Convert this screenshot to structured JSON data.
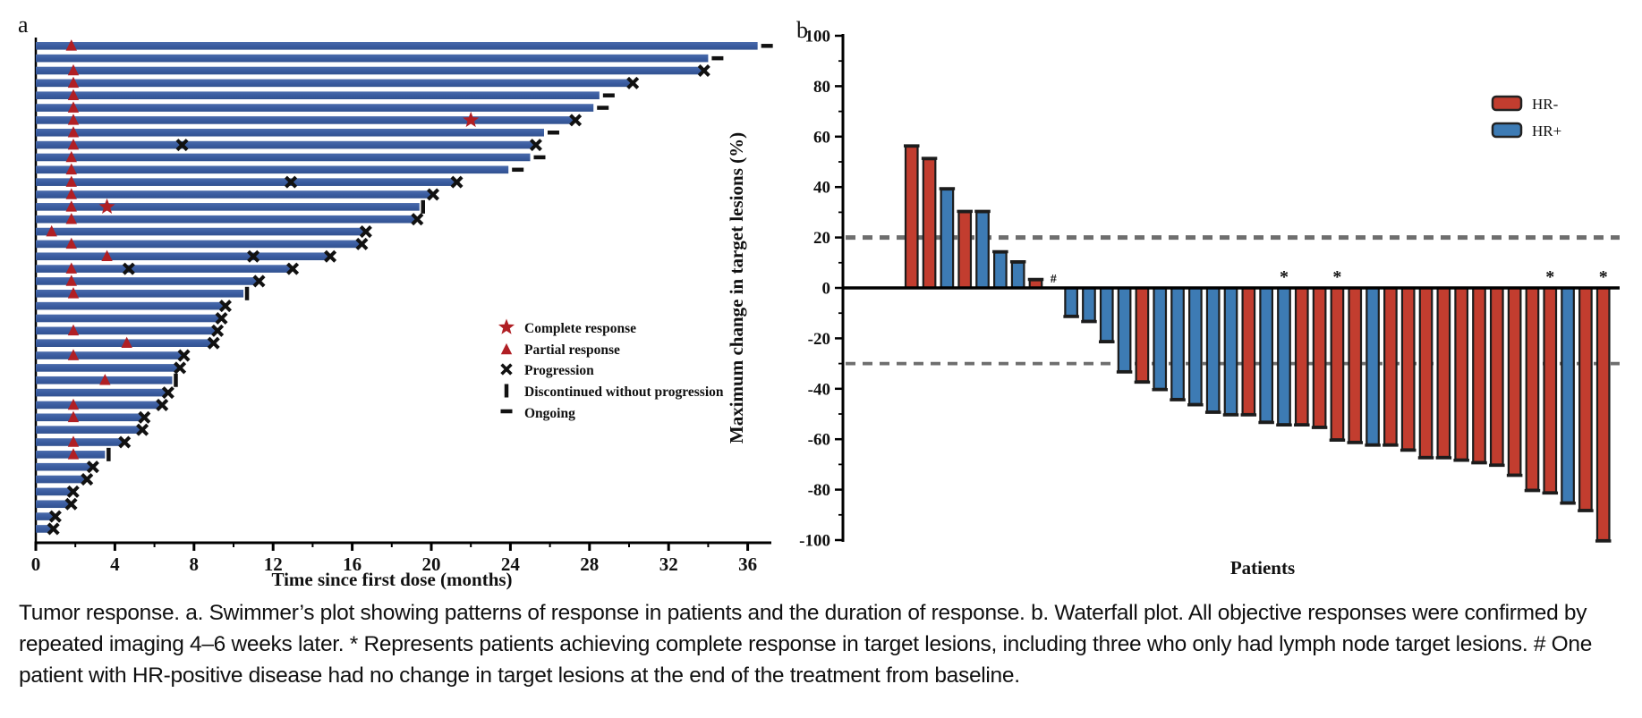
{
  "caption": "Tumor response. a. Swimmer’s plot showing patterns of response in patients and the duration of response. b. Waterfall plot. All objective responses were confirmed by repeated imaging 4–6 weeks later. * Represents patients achieving complete response in target lesions, including three who only had lymph node target lesions. # One patient with HR-positive disease had no change in target lesions at the end of the treatment from baseline.",
  "colors": {
    "swimmer_bar": "#3a5ca0",
    "swimmer_bar_light": "#53719f",
    "response_red": "#b01f24",
    "marker_black": "#111111",
    "hr_negative": "#c23d2f",
    "hr_positive": "#3d7bb4",
    "bar_outline": "#1c1c1c",
    "ref_line_gray": "#6e6e6e",
    "axis_black": "#000000"
  },
  "chart_data": [
    {
      "panel": "a",
      "type": "swimmer",
      "xlabel": "Time since first dose (months)",
      "xticks": [
        0,
        4,
        8,
        12,
        16,
        20,
        24,
        28,
        32,
        36
      ],
      "xminor_step": 2,
      "xlim": [
        0,
        37.2
      ],
      "legend": [
        {
          "marker": "star",
          "label": "Complete response"
        },
        {
          "marker": "triangle",
          "label": "Partial response"
        },
        {
          "marker": "x",
          "label": "Progression"
        },
        {
          "marker": "bar",
          "label": "Discontinued without progression"
        },
        {
          "marker": "dash",
          "label": "Ongoing"
        }
      ],
      "patients": [
        {
          "end": 36.5,
          "end_marker": "ongoing",
          "pr": [
            1.8
          ]
        },
        {
          "end": 34.0,
          "end_marker": "ongoing",
          "pr": []
        },
        {
          "end": 33.7,
          "end_marker": "progression",
          "pr": [
            1.9
          ]
        },
        {
          "end": 30.1,
          "end_marker": "progression",
          "pr": [
            1.9
          ]
        },
        {
          "end": 28.5,
          "end_marker": "ongoing",
          "pr": [
            1.9
          ]
        },
        {
          "end": 28.2,
          "end_marker": "ongoing",
          "pr": [
            1.9
          ]
        },
        {
          "end": 27.2,
          "end_marker": "progression",
          "pr": [
            1.9
          ],
          "cr": [
            22.0
          ]
        },
        {
          "end": 25.7,
          "end_marker": "ongoing",
          "pr": [
            1.9
          ]
        },
        {
          "end": 25.2,
          "end_marker": "progression",
          "pr": [
            1.9
          ],
          "x": [
            7.4
          ]
        },
        {
          "end": 25.0,
          "end_marker": "ongoing",
          "pr": [
            1.8
          ]
        },
        {
          "end": 23.9,
          "end_marker": "ongoing",
          "pr": [
            1.8
          ]
        },
        {
          "end": 21.2,
          "end_marker": "progression",
          "pr": [
            1.8
          ],
          "x": [
            12.9
          ]
        },
        {
          "end": 20.0,
          "end_marker": "progression",
          "pr": [
            1.8
          ]
        },
        {
          "end": 19.4,
          "end_marker": "discontinued",
          "pr": [
            1.8
          ],
          "cr": [
            3.6
          ]
        },
        {
          "end": 19.2,
          "end_marker": "progression",
          "pr": [
            1.8
          ]
        },
        {
          "end": 16.6,
          "end_marker": "progression",
          "pr": [
            0.8
          ]
        },
        {
          "end": 16.4,
          "end_marker": "progression",
          "pr": [
            1.8
          ]
        },
        {
          "end": 14.8,
          "end_marker": "progression",
          "pr": [
            3.6
          ],
          "x": [
            11.0
          ]
        },
        {
          "end": 12.9,
          "end_marker": "progression",
          "pr": [
            1.8
          ],
          "x": [
            4.7
          ]
        },
        {
          "end": 11.2,
          "end_marker": "progression",
          "pr": [
            1.8
          ]
        },
        {
          "end": 10.5,
          "end_marker": "discontinued",
          "pr": [
            1.9
          ]
        },
        {
          "end": 9.5,
          "end_marker": "progression",
          "pr": []
        },
        {
          "end": 9.3,
          "end_marker": "progression",
          "pr": []
        },
        {
          "end": 9.1,
          "end_marker": "progression",
          "pr": [
            1.9
          ]
        },
        {
          "end": 8.9,
          "end_marker": "progression",
          "pr": [
            4.6
          ]
        },
        {
          "end": 7.4,
          "end_marker": "progression",
          "pr": [
            1.9
          ]
        },
        {
          "end": 7.2,
          "end_marker": "progression",
          "pr": []
        },
        {
          "end": 6.9,
          "end_marker": "discontinued",
          "pr": [
            3.5
          ]
        },
        {
          "end": 6.6,
          "end_marker": "progression",
          "pr": []
        },
        {
          "end": 6.3,
          "end_marker": "progression",
          "pr": [
            1.9
          ]
        },
        {
          "end": 5.4,
          "end_marker": "progression",
          "pr": [
            1.9
          ]
        },
        {
          "end": 5.3,
          "end_marker": "progression",
          "pr": []
        },
        {
          "end": 4.4,
          "end_marker": "progression",
          "pr": [
            1.9
          ]
        },
        {
          "end": 3.5,
          "end_marker": "discontinued",
          "pr": [
            1.9
          ]
        },
        {
          "end": 2.8,
          "end_marker": "progression",
          "pr": []
        },
        {
          "end": 2.5,
          "end_marker": "progression",
          "pr": []
        },
        {
          "end": 1.8,
          "end_marker": "progression",
          "pr": []
        },
        {
          "end": 1.7,
          "end_marker": "progression",
          "pr": []
        },
        {
          "end": 0.9,
          "end_marker": "progression",
          "pr": []
        },
        {
          "end": 0.8,
          "end_marker": "progression",
          "pr": []
        }
      ]
    },
    {
      "panel": "b",
      "type": "bar",
      "ylabel": "Maximum change in target lesions (%)",
      "xlabel": "Patients",
      "yticks": [
        100,
        80,
        60,
        40,
        20,
        0,
        -20,
        -40,
        -60,
        -80,
        -100
      ],
      "ytick_labels": [
        "100",
        "80",
        "60",
        "40",
        "20",
        "0",
        "-20",
        "-40",
        "-60",
        "-80",
        "-100"
      ],
      "yminor_step": 10,
      "ylim": [
        -100,
        100
      ],
      "ref_lines": [
        20,
        -30
      ],
      "legend": [
        {
          "label": "HR-",
          "color": "#c23d2f"
        },
        {
          "label": "HR+",
          "color": "#3d7bb4"
        }
      ],
      "bars": [
        {
          "value": 56,
          "group": "HR-"
        },
        {
          "value": 51,
          "group": "HR-"
        },
        {
          "value": 39,
          "group": "HR+"
        },
        {
          "value": 30,
          "group": "HR-"
        },
        {
          "value": 30,
          "group": "HR+"
        },
        {
          "value": 14,
          "group": "HR+"
        },
        {
          "value": 10,
          "group": "HR+"
        },
        {
          "value": 3,
          "group": "HR-"
        },
        {
          "value": 0,
          "group": "HR+",
          "annotation": "#"
        },
        {
          "value": -11,
          "group": "HR+"
        },
        {
          "value": -13,
          "group": "HR+"
        },
        {
          "value": -21,
          "group": "HR+"
        },
        {
          "value": -33,
          "group": "HR+"
        },
        {
          "value": -37,
          "group": "HR-"
        },
        {
          "value": -40,
          "group": "HR+"
        },
        {
          "value": -44,
          "group": "HR+"
        },
        {
          "value": -46,
          "group": "HR+"
        },
        {
          "value": -49,
          "group": "HR+"
        },
        {
          "value": -50,
          "group": "HR+"
        },
        {
          "value": -50,
          "group": "HR-"
        },
        {
          "value": -53,
          "group": "HR+"
        },
        {
          "value": -54,
          "group": "HR+",
          "annotation": "*"
        },
        {
          "value": -54,
          "group": "HR-"
        },
        {
          "value": -55,
          "group": "HR-"
        },
        {
          "value": -60,
          "group": "HR-",
          "annotation": "*"
        },
        {
          "value": -61,
          "group": "HR-"
        },
        {
          "value": -62,
          "group": "HR+"
        },
        {
          "value": -62,
          "group": "HR-"
        },
        {
          "value": -64,
          "group": "HR-"
        },
        {
          "value": -67,
          "group": "HR-"
        },
        {
          "value": -67,
          "group": "HR-"
        },
        {
          "value": -68,
          "group": "HR-"
        },
        {
          "value": -69,
          "group": "HR-"
        },
        {
          "value": -70,
          "group": "HR-"
        },
        {
          "value": -74,
          "group": "HR-"
        },
        {
          "value": -80,
          "group": "HR-"
        },
        {
          "value": -81,
          "group": "HR-",
          "annotation": "*"
        },
        {
          "value": -85,
          "group": "HR+"
        },
        {
          "value": -88,
          "group": "HR-"
        },
        {
          "value": -100,
          "group": "HR-",
          "annotation": "*"
        }
      ]
    }
  ]
}
